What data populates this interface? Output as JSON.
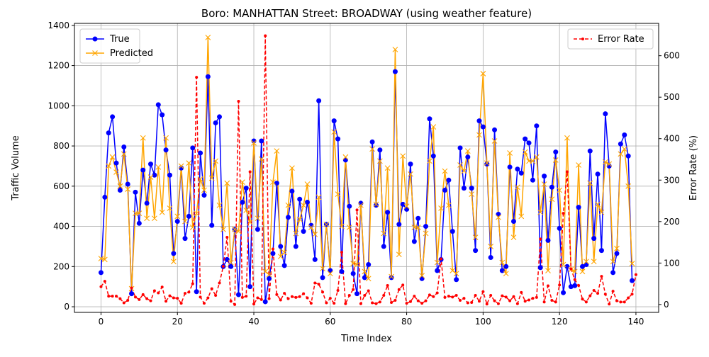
{
  "chart_data": {
    "type": "line",
    "title": "Boro: MANHATTAN Street: BROADWAY (using weather feature)",
    "xlabel": "Time Index",
    "ylabel_left": "Traffic Volume",
    "ylabel_right": "Error Rate (%)",
    "xlim": [
      -6.95,
      145.95
    ],
    "ylim_left": [
      -28,
      1410
    ],
    "ylim_right": [
      -19,
      678
    ],
    "xticks": [
      0,
      20,
      40,
      60,
      80,
      100,
      120,
      140
    ],
    "yticks_left": [
      0,
      200,
      400,
      600,
      800,
      1000,
      1200,
      1400
    ],
    "yticks_right": [
      0,
      100,
      200,
      300,
      400,
      500,
      600
    ],
    "grid": true,
    "legend_left_position": "upper-left",
    "legend_right_position": "upper-right",
    "series": [
      {
        "name": "True",
        "axis": "left",
        "color": "#0000ff",
        "marker": "circle",
        "values": [
          170,
          545,
          865,
          945,
          715,
          580,
          795,
          610,
          65,
          570,
          415,
          680,
          515,
          710,
          655,
          1005,
          955,
          780,
          655,
          265,
          425,
          690,
          340,
          450,
          790,
          75,
          765,
          555,
          1145,
          405,
          915,
          945,
          200,
          235,
          200,
          385,
          60,
          520,
          590,
          100,
          825,
          385,
          825,
          25,
          140,
          265,
          615,
          300,
          205,
          445,
          575,
          300,
          535,
          375,
          520,
          405,
          235,
          1025,
          145,
          410,
          180,
          925,
          835,
          175,
          730,
          500,
          165,
          65,
          515,
          145,
          210,
          820,
          505,
          780,
          300,
          470,
          145,
          1170,
          410,
          510,
          485,
          710,
          325,
          440,
          140,
          400,
          935,
          750,
          180,
          235,
          580,
          630,
          375,
          135,
          790,
          590,
          745,
          590,
          280,
          925,
          895,
          710,
          245,
          880,
          460,
          180,
          200,
          695,
          425,
          685,
          665,
          835,
          815,
          630,
          900,
          195,
          650,
          330,
          595,
          770,
          390,
          70,
          200,
          100,
          105,
          495,
          200,
          210,
          775,
          340,
          660,
          280,
          960,
          700,
          170,
          265,
          810,
          855,
          750,
          130
        ]
      },
      {
        "name": "Predicted",
        "axis": "left",
        "color": "#ffa500",
        "marker": "x",
        "values": [
          240,
          235,
          700,
          745,
          670,
          600,
          760,
          585,
          90,
          465,
          465,
          840,
          440,
          645,
          440,
          695,
          470,
          840,
          490,
          225,
          450,
          700,
          425,
          715,
          395,
          465,
          635,
          580,
          1340,
          640,
          725,
          505,
          385,
          615,
          220,
          385,
          375,
          620,
          480,
          420,
          815,
          440,
          735,
          175,
          160,
          620,
          775,
          250,
          270,
          505,
          690,
          365,
          435,
          505,
          610,
          395,
          360,
          545,
          190,
          410,
          165,
          870,
          560,
          400,
          745,
          395,
          215,
          210,
          505,
          175,
          140,
          785,
          510,
          725,
          365,
          690,
          150,
          1280,
          260,
          750,
          500,
          660,
          395,
          395,
          155,
          365,
          725,
          895,
          220,
          490,
          675,
          505,
          180,
          165,
          705,
          675,
          775,
          560,
          345,
          855,
          1160,
          715,
          300,
          825,
          445,
          220,
          165,
          765,
          345,
          595,
          450,
          770,
          725,
          725,
          745,
          470,
          610,
          180,
          535,
          730,
          580,
          210,
          840,
          185,
          175,
          705,
          175,
          225,
          615,
          225,
          510,
          470,
          720,
          710,
          225,
          290,
          760,
          785,
          600,
          215
        ]
      },
      {
        "name": "Error Rate",
        "axis": "right",
        "color": "#ff0000",
        "marker": "dot",
        "dashed": true,
        "values": [
          43,
          56,
          20,
          20,
          20,
          14,
          4,
          10,
          40,
          18,
          12,
          24,
          14,
          9,
          33,
          28,
          42,
          8,
          21,
          16,
          15,
          3,
          27,
          30,
          50,
          548,
          18,
          3,
          16,
          38,
          22,
          52,
          92,
          162,
          8,
          0,
          490,
          17,
          20,
          320,
          1,
          16,
          12,
          648,
          14,
          134,
          24,
          11,
          27,
          14,
          19,
          17,
          19,
          26,
          16,
          3,
          52,
          49,
          30,
          4,
          15,
          3,
          34,
          126,
          2,
          22,
          36,
          228,
          2,
          22,
          33,
          4,
          2,
          6,
          22,
          46,
          5,
          10,
          36,
          47,
          3,
          7,
          20,
          9,
          3,
          9,
          23,
          19,
          28,
          110,
          17,
          20,
          18,
          22,
          10,
          15,
          4,
          5,
          22,
          8,
          31,
          1,
          22,
          9,
          2,
          21,
          18,
          9,
          19,
          2,
          29,
          8,
          11,
          15,
          17,
          158,
          6,
          45,
          10,
          6,
          47,
          220,
          320,
          86,
          60,
          46,
          13,
          6,
          21,
          34,
          27,
          68,
          25,
          1,
          32,
          9,
          6,
          6,
          16,
          25,
          72
        ]
      }
    ]
  }
}
